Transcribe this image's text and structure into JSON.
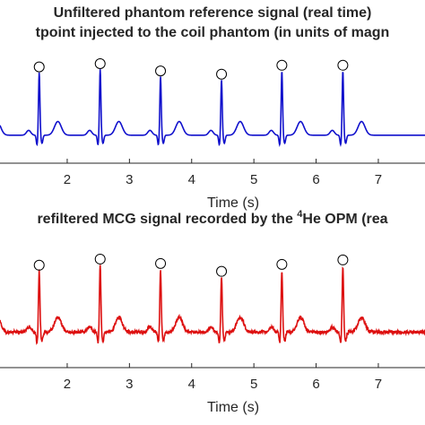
{
  "chart_data": [
    {
      "type": "line",
      "title_line1": "Unfiltered phantom reference signal (real time)",
      "title_line2": "tpoint injected to the coil phantom (in units of magn",
      "xlabel": "Time (s)",
      "xticks": [
        2,
        3,
        4,
        5,
        6,
        7
      ],
      "xlim": [
        0.92,
        7.75
      ],
      "color": "#1010cc",
      "peak_times": [
        1.55,
        2.53,
        3.5,
        4.48,
        5.45,
        6.43
      ],
      "peak_heights": [
        0.86,
        0.9,
        0.81,
        0.77,
        0.88,
        0.88
      ],
      "baseline_level": 0.08
    },
    {
      "type": "line",
      "title_pre": "refiltered MCG signal recorded by the ",
      "title_sup": "4",
      "title_post": "He OPM (rea",
      "xlabel": "Time (s)",
      "xticks": [
        2,
        3,
        4,
        5,
        6,
        7
      ],
      "xlim": [
        0.92,
        7.75
      ],
      "color": "#dd1010",
      "peak_times": [
        1.55,
        2.53,
        3.5,
        4.48,
        5.45,
        6.43
      ],
      "peak_heights": [
        0.9,
        0.97,
        0.92,
        0.83,
        0.91,
        0.96
      ],
      "baseline_level": 0.2
    }
  ]
}
